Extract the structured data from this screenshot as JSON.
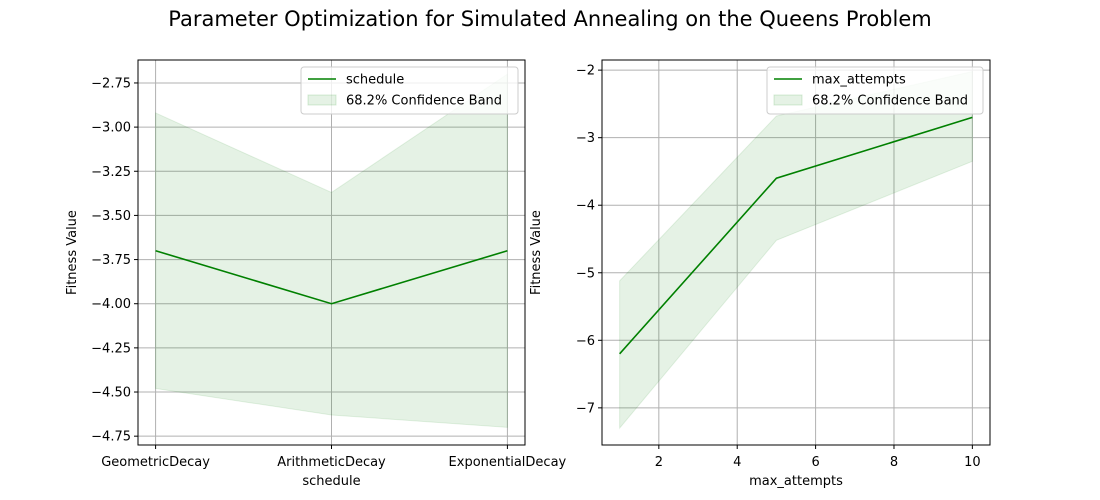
{
  "figure": {
    "title": "Parameter Optimization for Simulated Annealing on the Queens Problem"
  },
  "colors": {
    "line": "#008000",
    "band_fill": "#008000",
    "grid": "#b0b0b0"
  },
  "chart_data": [
    {
      "type": "line",
      "x_type": "category",
      "categories": [
        "GeometricDecay",
        "ArithmeticDecay",
        "ExponentialDecay"
      ],
      "series": [
        {
          "name": "schedule",
          "values": [
            -3.7,
            -4.0,
            -3.7
          ],
          "band_lower": [
            -4.48,
            -4.63,
            -4.7
          ],
          "band_upper": [
            -2.92,
            -3.37,
            -2.7
          ]
        }
      ],
      "band_label": "68.2% Confidence Band",
      "xlabel": "schedule",
      "ylabel": "Fitness Value",
      "ylim": [
        -4.8,
        -2.62
      ],
      "yticks": [
        -4.75,
        -4.5,
        -4.25,
        -4.0,
        -3.75,
        -3.5,
        -3.25,
        -3.0,
        -2.75
      ],
      "ytick_labels": [
        "−4.75",
        "−4.50",
        "−4.25",
        "−4.00",
        "−3.75",
        "−3.50",
        "−3.25",
        "−3.00",
        "−2.75"
      ],
      "grid": true,
      "legend": "top-right"
    },
    {
      "type": "line",
      "x_type": "numeric",
      "x": [
        1,
        5,
        10
      ],
      "series": [
        {
          "name": "max_attempts",
          "values": [
            -6.2,
            -3.6,
            -2.7
          ],
          "band_lower": [
            -7.3,
            -4.52,
            -3.35
          ],
          "band_upper": [
            -5.12,
            -2.68,
            -2.02
          ]
        }
      ],
      "band_label": "68.2% Confidence Band",
      "xlabel": "max_attempts",
      "ylabel": "Fitness Value",
      "xlim": [
        0.55,
        10.45
      ],
      "xticks": [
        2,
        4,
        6,
        8,
        10
      ],
      "xtick_labels": [
        "2",
        "4",
        "6",
        "8",
        "10"
      ],
      "ylim": [
        -7.55,
        -1.85
      ],
      "yticks": [
        -7,
        -6,
        -5,
        -4,
        -3,
        -2
      ],
      "ytick_labels": [
        "−7",
        "−6",
        "−5",
        "−4",
        "−3",
        "−2"
      ],
      "grid": true,
      "legend": "top-right"
    }
  ]
}
